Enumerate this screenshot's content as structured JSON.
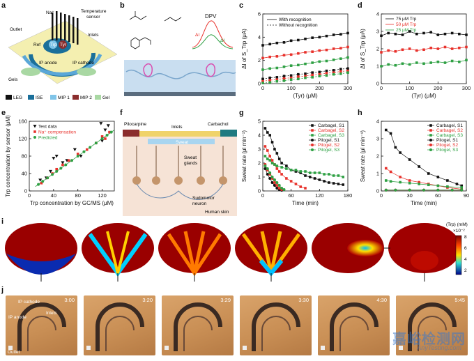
{
  "panel_labels": {
    "a": "a",
    "b": "b",
    "c": "c",
    "d": "d",
    "e": "e",
    "f": "f",
    "g": "g",
    "h": "h",
    "i": "i",
    "j": "j"
  },
  "panel_a": {
    "labels": {
      "na": "Na⁺",
      "temp": "Temperature",
      "temp2": "sensor",
      "outlet": "Outlet",
      "inlets": "Inlets",
      "ref": "Ref",
      "trp": "Trp",
      "tyr": "Tyr",
      "ip_anode": "IP anode",
      "ip_cathode": "IP cathode",
      "gels": "Gels"
    },
    "legend": [
      {
        "label": "LEG",
        "color": "#111111"
      },
      {
        "label": "ISE",
        "color": "#1a6f9a"
      },
      {
        "label": "MIP 1",
        "color": "#7fc4e8"
      },
      {
        "label": "MIP 2",
        "color": "#8b2d2d"
      },
      {
        "label": "Gel",
        "color": "#a9d8a3"
      }
    ]
  },
  "panel_b": {
    "dpv": "DPV",
    "di_l": "ΔI",
    "di_h": "ΔI"
  },
  "chart_c": {
    "type": "line",
    "xlabel": "(Tyr) (μM)",
    "ylabel": "ΔI of S_Trp (μA)",
    "xlim": [
      0,
      300
    ],
    "ylim": [
      0,
      6
    ],
    "xticks": [
      0,
      100,
      200,
      300
    ],
    "yticks": [
      0,
      2,
      4,
      6
    ],
    "legend": [
      "With recognition",
      "Without recognition"
    ],
    "x": [
      0,
      25,
      50,
      75,
      100,
      125,
      150,
      175,
      200,
      225,
      250,
      275,
      300
    ],
    "series": [
      {
        "name": "With recognition black",
        "color": "#111111",
        "values": [
          3.3,
          3.4,
          3.5,
          3.55,
          3.7,
          3.75,
          3.85,
          3.95,
          4.0,
          4.1,
          4.2,
          4.25,
          4.35
        ],
        "dashed": false
      },
      {
        "name": "With recognition red",
        "color": "#e8312b",
        "values": [
          2.2,
          2.3,
          2.35,
          2.45,
          2.5,
          2.6,
          2.7,
          2.75,
          2.85,
          2.9,
          3.0,
          3.05,
          3.15
        ],
        "dashed": false
      },
      {
        "name": "With recognition green",
        "color": "#2ea043",
        "values": [
          1.2,
          1.3,
          1.35,
          1.45,
          1.55,
          1.6,
          1.7,
          1.8,
          1.9,
          1.95,
          2.05,
          2.15,
          2.25
        ],
        "dashed": false
      },
      {
        "name": "Without recognition black",
        "color": "#111111",
        "values": [
          0.4,
          0.5,
          0.55,
          0.65,
          0.7,
          0.8,
          0.85,
          0.95,
          1.0,
          1.1,
          1.15,
          1.25,
          1.3
        ],
        "dashed": true
      },
      {
        "name": "Without recognition red",
        "color": "#e8312b",
        "values": [
          0.2,
          0.3,
          0.35,
          0.45,
          0.5,
          0.6,
          0.65,
          0.75,
          0.8,
          0.9,
          0.95,
          1.05,
          1.1
        ],
        "dashed": true
      },
      {
        "name": "Without recognition green",
        "color": "#2ea043",
        "values": [
          0.05,
          0.1,
          0.2,
          0.25,
          0.35,
          0.4,
          0.5,
          0.55,
          0.65,
          0.7,
          0.8,
          0.85,
          0.95
        ],
        "dashed": true
      }
    ]
  },
  "chart_d": {
    "type": "line",
    "xlabel": "(Tyr) (μM)",
    "ylabel": "ΔI of S_Trp (μA)",
    "xlim": [
      0,
      300
    ],
    "ylim": [
      0,
      4
    ],
    "xticks": [
      0,
      100,
      200,
      300
    ],
    "yticks": [
      0,
      1,
      2,
      3,
      4
    ],
    "x": [
      0,
      25,
      50,
      75,
      100,
      125,
      150,
      175,
      200,
      225,
      250,
      275,
      300
    ],
    "series": [
      {
        "name": "75 μM Trp",
        "color": "#111111",
        "values": [
          2.75,
          2.9,
          2.85,
          2.8,
          3.0,
          2.85,
          2.9,
          2.95,
          2.8,
          2.85,
          2.9,
          2.85,
          2.8
        ]
      },
      {
        "name": "50 μM Trp",
        "color": "#e8312b",
        "values": [
          1.8,
          1.9,
          1.85,
          1.95,
          2.0,
          1.9,
          1.95,
          2.05,
          2.0,
          2.1,
          2.0,
          2.05,
          2.1
        ]
      },
      {
        "name": "25 μM Trp",
        "color": "#2ea043",
        "values": [
          1.0,
          1.1,
          1.05,
          1.15,
          1.1,
          1.2,
          1.15,
          1.2,
          1.25,
          1.2,
          1.3,
          1.25,
          1.35
        ]
      }
    ]
  },
  "chart_e": {
    "type": "scatter",
    "xlabel": "Trp concentration by GC/MS (μM)",
    "ylabel": "Trp concentration by sensor (μM)",
    "xlim": [
      0,
      140
    ],
    "ylim": [
      0,
      160
    ],
    "xticks": [
      0,
      40,
      80,
      120
    ],
    "yticks": [
      0,
      40,
      80,
      120,
      160
    ],
    "legend": [
      "Test data",
      "Na⁺ compensation",
      "Predicted"
    ],
    "series": [
      {
        "name": "Test data",
        "color": "#111111",
        "marker": "triangle",
        "x": [
          18,
          28,
          35,
          40,
          45,
          55,
          62,
          75,
          85,
          118,
          120,
          125,
          130
        ],
        "y": [
          25,
          30,
          45,
          75,
          80,
          65,
          70,
          95,
          80,
          155,
          115,
          140,
          150
        ]
      },
      {
        "name": "Na⁺ compensation",
        "color": "#e8312b",
        "marker": "square",
        "x": [
          20,
          30,
          38,
          45,
          55,
          65,
          80,
          95,
          110,
          120,
          125,
          132
        ],
        "y": [
          18,
          30,
          40,
          50,
          60,
          70,
          85,
          95,
          110,
          125,
          120,
          135
        ]
      },
      {
        "name": "Predicted",
        "color": "#2ea043",
        "marker": "circle",
        "x": [
          15,
          22,
          30,
          38,
          45,
          52,
          60,
          70,
          80,
          90,
          100,
          110,
          120,
          128,
          135
        ],
        "y": [
          15,
          22,
          30,
          38,
          45,
          52,
          60,
          70,
          80,
          90,
          100,
          110,
          120,
          128,
          135
        ]
      }
    ],
    "fit": {
      "x": [
        10,
        140
      ],
      "y": [
        10,
        140
      ]
    }
  },
  "panel_f": {
    "pilocarpine": "Pilocarpine",
    "carbachol": "Carbachol",
    "inlets": "Inlets",
    "sweat": "Sweat",
    "sweat_glands": "Sweat",
    "sweat_glands2": "glands",
    "neuron": "Sudomotor",
    "neuron2": "neuron",
    "skin": "Human skin"
  },
  "chart_g": {
    "type": "line",
    "xlabel": "Time (min)",
    "ylabel": "Sweat rate (μl min⁻¹)",
    "xlim": [
      0,
      180
    ],
    "ylim": [
      0,
      5
    ],
    "xticks": [
      0,
      60,
      120,
      180
    ],
    "yticks": [
      0,
      1,
      2,
      3,
      4,
      5
    ],
    "series": [
      {
        "name": "Carbagel, S1",
        "color": "#111111",
        "marker": "square",
        "x": [
          5,
          10,
          15,
          20,
          25,
          30,
          35,
          40,
          50,
          60,
          70,
          80,
          90,
          100,
          110,
          120,
          130,
          140,
          150,
          160,
          170
        ],
        "y": [
          4.5,
          4.2,
          4.0,
          3.5,
          3.0,
          2.7,
          2.3,
          2.0,
          1.8,
          1.5,
          1.4,
          1.3,
          1.1,
          1.0,
          0.9,
          0.8,
          0.7,
          0.6,
          0.55,
          0.5,
          0.45
        ]
      },
      {
        "name": "Carbagel, S2",
        "color": "#e8312b",
        "marker": "square",
        "x": [
          5,
          10,
          15,
          20,
          25,
          30,
          35,
          40,
          50,
          60,
          70,
          80,
          90
        ],
        "y": [
          3.2,
          2.9,
          2.5,
          2.2,
          1.9,
          1.6,
          1.4,
          1.2,
          0.9,
          0.7,
          0.5,
          0.3,
          0.2
        ]
      },
      {
        "name": "Carbagel, S3",
        "color": "#2ea043",
        "marker": "square",
        "x": [
          5,
          10,
          15,
          20,
          25,
          30,
          40,
          50,
          60,
          70,
          80,
          90,
          100,
          110,
          120,
          130,
          140,
          150,
          160,
          170
        ],
        "y": [
          2.5,
          2.3,
          2.2,
          2.0,
          1.9,
          1.8,
          1.7,
          1.6,
          1.5,
          1.5,
          1.4,
          1.4,
          1.3,
          1.3,
          1.3,
          1.2,
          1.2,
          1.1,
          1.1,
          1.0
        ]
      },
      {
        "name": "Pilogel, S1",
        "color": "#111111",
        "marker": "circle",
        "x": [
          5,
          10,
          15,
          20,
          25,
          30,
          35,
          40
        ],
        "y": [
          1.6,
          1.2,
          0.9,
          0.6,
          0.4,
          0.2,
          0.1,
          0.05
        ]
      },
      {
        "name": "Pilogel, S2",
        "color": "#e8312b",
        "marker": "circle",
        "x": [
          5,
          10,
          15,
          20,
          25,
          30,
          35,
          40
        ],
        "y": [
          1.9,
          1.5,
          1.2,
          0.9,
          0.6,
          0.4,
          0.2,
          0.1
        ]
      },
      {
        "name": "Pilogel, S3",
        "color": "#2ea043",
        "marker": "circle",
        "x": [
          5,
          10,
          15,
          20,
          25,
          30,
          35,
          40,
          45
        ],
        "y": [
          1.8,
          1.6,
          1.3,
          1.0,
          0.8,
          0.6,
          0.4,
          0.2,
          0.1
        ]
      }
    ]
  },
  "chart_h": {
    "type": "line",
    "xlabel": "Time (min)",
    "ylabel": "Sweat rate (μl min⁻¹)",
    "xlim": [
      0,
      90
    ],
    "ylim": [
      0,
      4
    ],
    "xticks": [
      0,
      30,
      60,
      90
    ],
    "yticks": [
      0,
      1,
      2,
      3,
      4
    ],
    "series": [
      {
        "name": "Carbagel, S1",
        "color": "#111111",
        "marker": "square",
        "x": [
          5,
          10,
          15,
          20,
          30,
          40,
          50,
          60,
          70,
          80,
          85
        ],
        "y": [
          3.5,
          3.3,
          2.5,
          2.2,
          1.8,
          1.4,
          1.0,
          0.8,
          0.6,
          0.4,
          0.3
        ]
      },
      {
        "name": "Carbagel, S2",
        "color": "#e8312b",
        "marker": "square",
        "x": [
          5,
          10,
          20,
          30,
          40,
          50,
          60,
          70,
          85
        ],
        "y": [
          1.3,
          1.1,
          0.8,
          0.6,
          0.5,
          0.4,
          0.3,
          0.2,
          0.1
        ]
      },
      {
        "name": "Carbagel, S3",
        "color": "#2ea043",
        "marker": "square",
        "x": [
          5,
          10,
          20,
          30,
          40,
          50,
          60,
          70,
          85
        ],
        "y": [
          0.6,
          0.55,
          0.5,
          0.45,
          0.4,
          0.35,
          0.3,
          0.25,
          0.2
        ]
      },
      {
        "name": "Pilogel, S1",
        "color": "#111111",
        "marker": "circle",
        "x": [
          5,
          15,
          30,
          45,
          60,
          75,
          85
        ],
        "y": [
          0.05,
          0.05,
          0.05,
          0.05,
          0.05,
          0.05,
          0.05
        ]
      },
      {
        "name": "Pilogel, S2",
        "color": "#e8312b",
        "marker": "circle",
        "x": [
          5,
          15,
          30,
          45,
          60,
          75,
          85
        ],
        "y": [
          0.05,
          0.05,
          0.05,
          0.05,
          0.05,
          0.05,
          0.05
        ]
      },
      {
        "name": "Pilogel, S3",
        "color": "#2ea043",
        "marker": "circle",
        "x": [
          5,
          15,
          30,
          45,
          60,
          75,
          85
        ],
        "y": [
          0.05,
          0.05,
          0.05,
          0.05,
          0.05,
          0.05,
          0.05
        ]
      }
    ]
  },
  "panel_i": {
    "colorbar_title": "(Trp) (mM)",
    "colorbar_exp": "×10⁻²",
    "colorbar_ticks": [
      "8",
      "6",
      "4",
      "2"
    ]
  },
  "panel_j": {
    "frames": [
      {
        "time": "3:00",
        "labels": [
          "IP cathode",
          "IP anode",
          "Inlets",
          "Outlet"
        ]
      },
      {
        "time": "3:20",
        "labels": []
      },
      {
        "time": "3:29",
        "labels": []
      },
      {
        "time": "3:30",
        "labels": []
      },
      {
        "time": "4:30",
        "labels": []
      },
      {
        "time": "5:45",
        "labels": []
      }
    ]
  },
  "watermark": {
    "main": "嘉峪检测网",
    "sub": "AnyTesting.com"
  }
}
